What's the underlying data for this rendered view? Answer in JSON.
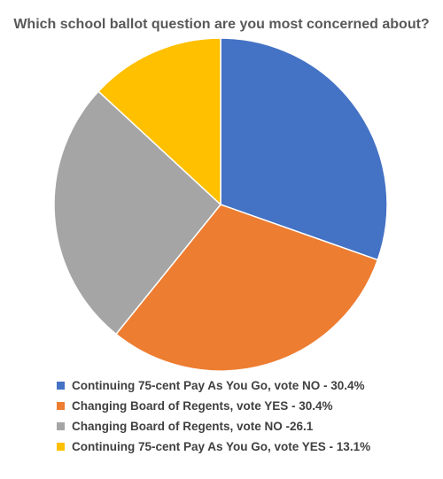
{
  "chart_data": {
    "type": "pie",
    "title": "Which school ballot question are you most concerned about?",
    "slices": [
      {
        "label": "Continuing 75-cent Pay As You Go, vote NO - 30.4%",
        "value": 30.4,
        "color": "#4472C4"
      },
      {
        "label": "Changing Board of Regents, vote YES - 30.4%",
        "value": 30.4,
        "color": "#ED7D31"
      },
      {
        "label": "Changing Board of Regents, vote NO -26.1",
        "value": 26.1,
        "color": "#A5A5A5"
      },
      {
        "label": "Continuing 75-cent Pay As You Go, vote YES - 13.1%",
        "value": 13.1,
        "color": "#FFC000"
      }
    ],
    "start_angle": "12 o'clock",
    "direction": "clockwise",
    "legend_position": "bottom"
  }
}
